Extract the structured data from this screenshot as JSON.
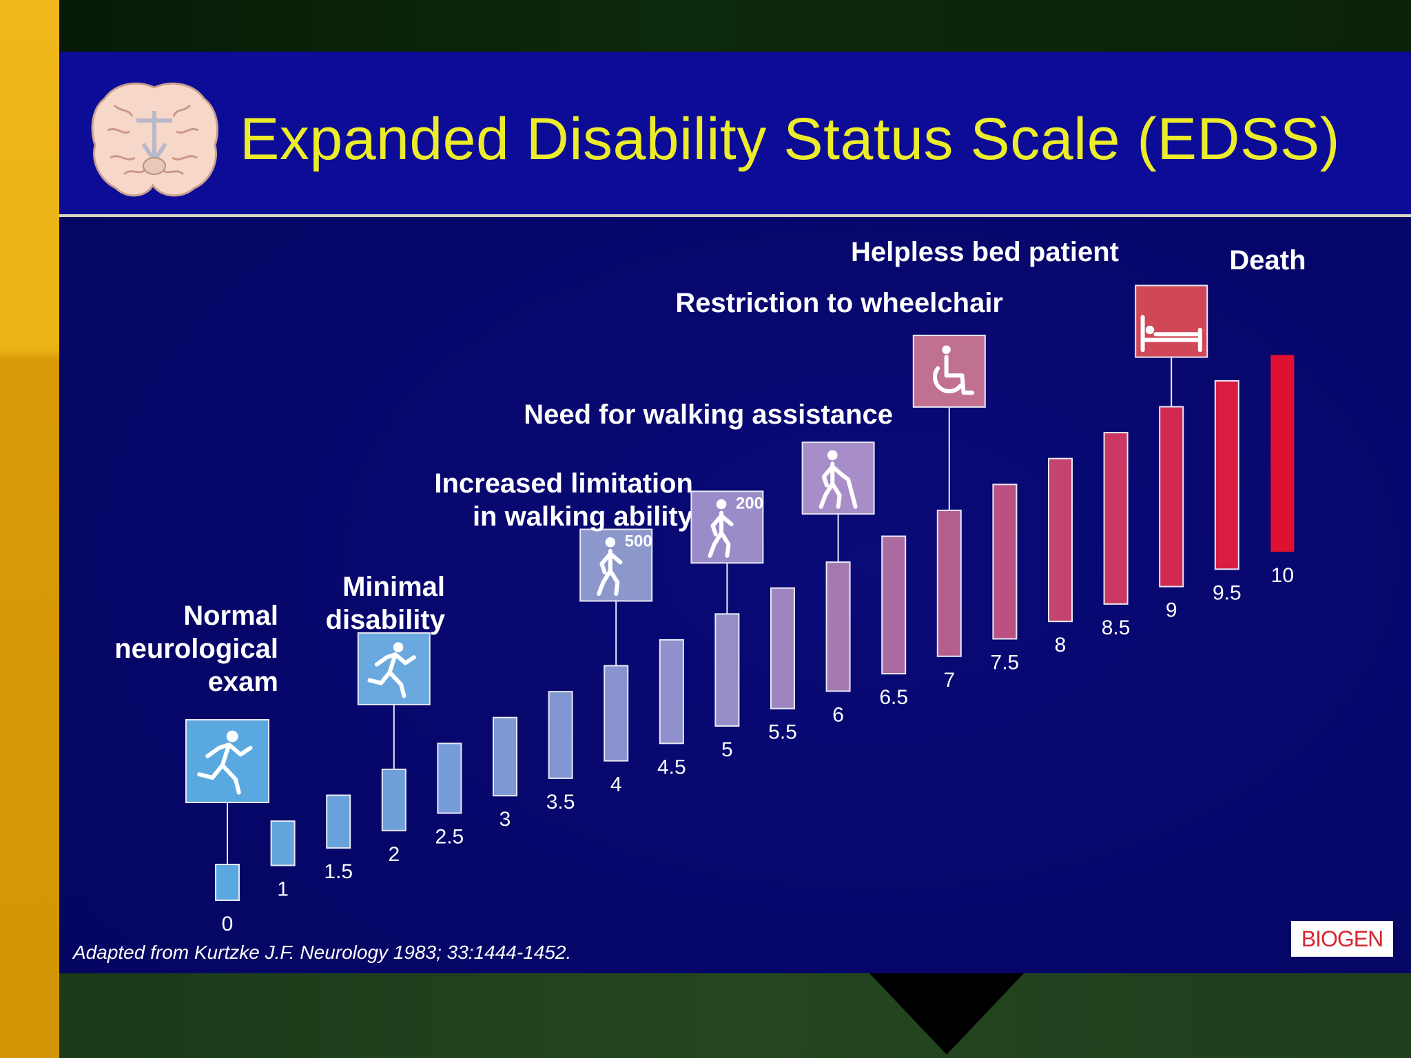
{
  "slide": {
    "title": "Expanded Disability Status Scale (EDSS)",
    "citation": "Adapted from Kurtzke J.F. Neurology 1983; 33:1444-1452.",
    "logo_text": "BIOGEN"
  },
  "colors": {
    "title": "#ecec2a",
    "header_bg": "#0c0c96",
    "slide_bg": "#06066a",
    "bar_low": "#5aa8e0",
    "bar_mid": "#9a8cc8",
    "bar_high": "#e01030",
    "accent_left": "#e8b010"
  },
  "chart_data": {
    "type": "bar",
    "title": "Expanded Disability Status Scale (EDSS)",
    "xlabel": "",
    "ylabel": "",
    "categories": [
      "0",
      "1",
      "1.5",
      "2",
      "2.5",
      "3",
      "3.5",
      "4",
      "4.5",
      "5",
      "5.5",
      "6",
      "6.5",
      "7",
      "7.5",
      "8",
      "8.5",
      "9",
      "9.5",
      "10"
    ],
    "values": [
      0,
      1,
      1.5,
      2,
      2.5,
      3,
      3.5,
      4,
      4.5,
      5,
      5.5,
      6,
      6.5,
      7,
      7.5,
      8,
      8.5,
      9,
      9.5,
      10
    ],
    "milestones": [
      {
        "score": "0",
        "label_lines": [
          "Normal",
          "neurological",
          "exam"
        ],
        "icon": "running-person-icon",
        "icon_text": ""
      },
      {
        "score": "2",
        "label_lines": [
          "Minimal",
          "disability"
        ],
        "icon": "running-person-icon",
        "icon_text": ""
      },
      {
        "score": "4",
        "label_lines": [
          "Increased limitation",
          "in walking ability"
        ],
        "icon": "walking-person-icon",
        "icon_text": "500"
      },
      {
        "score": "5",
        "label_lines": [],
        "icon": "walking-person-icon",
        "icon_text": "200"
      },
      {
        "score": "6",
        "label_lines": [
          "Need for walking assistance"
        ],
        "icon": "walking-cane-icon",
        "icon_text": ""
      },
      {
        "score": "7",
        "label_lines": [
          "Restriction to wheelchair"
        ],
        "icon": "wheelchair-icon",
        "icon_text": ""
      },
      {
        "score": "9",
        "label_lines": [
          "Helpless bed patient"
        ],
        "icon": "bed-icon",
        "icon_text": ""
      },
      {
        "score": "10",
        "label_lines": [
          "Death"
        ],
        "icon": "",
        "icon_text": ""
      }
    ]
  }
}
